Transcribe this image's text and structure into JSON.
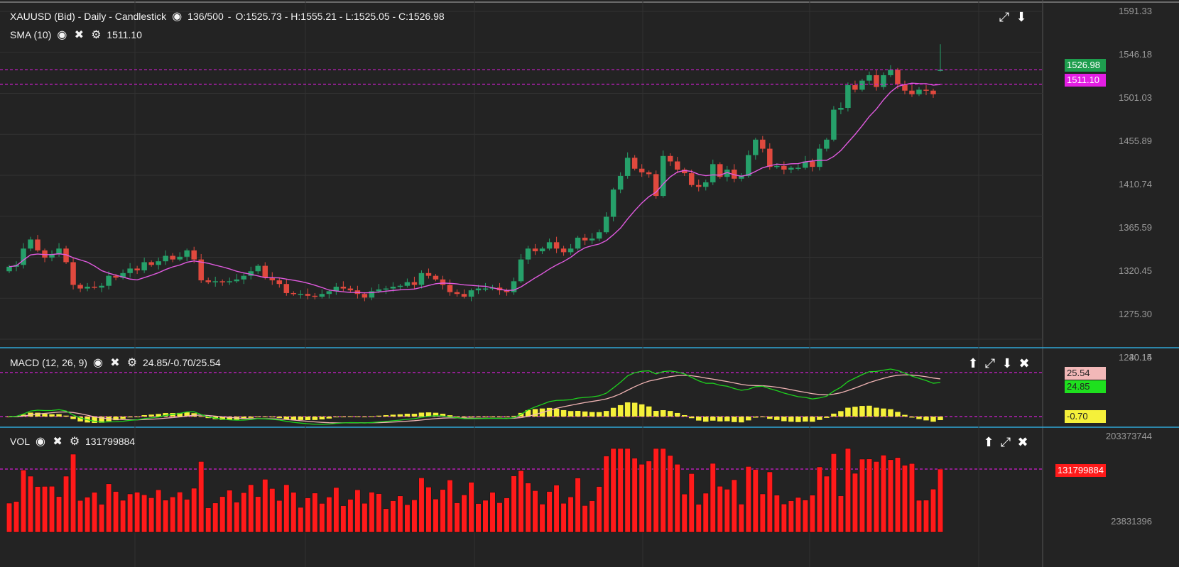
{
  "price_panel": {
    "header": "XAUUSD (Bid) - Daily - Candlestick",
    "counter": "136/500",
    "ohlc": "O:1525.73 - H:1555.21 - L:1525.05 - C:1526.98",
    "sma_label": "SMA (10)",
    "sma_value": "1511.10",
    "price_tag": "1526.98",
    "sma_tag": "1511.10",
    "axis_ticks": [
      "1591.33",
      "1546.18",
      "1501.03",
      "1455.89",
      "1410.74",
      "1365.59",
      "1320.45",
      "1275.30",
      "1230.15"
    ]
  },
  "macd_panel": {
    "label": "MACD (12, 26, 9)",
    "values": "24.85/-0.70/25.54",
    "axis_top": "40.14",
    "signal_tag": "25.54",
    "macd_tag": "24.85",
    "hist_tag": "-0.70"
  },
  "vol_panel": {
    "label": "VOL",
    "value": "131799884",
    "axis_top": "203373744",
    "axis_bottom": "23831396",
    "vol_tag": "131799884"
  },
  "colors": {
    "up": "#26a06a",
    "down": "#e0493e",
    "sma": "#e05adf",
    "macd": "#1ed21e",
    "signal": "#f0b4b4",
    "hist": "#f5f03a",
    "volume": "#ff1a1a",
    "guide": "#d21ed2",
    "separator": "#2fa8d8"
  },
  "chart_data": [
    {
      "type": "candlestick",
      "title": "XAUUSD (Bid) - Daily - Candlestick",
      "ylim": [
        1230.15,
        1591.33
      ],
      "closes": [
        1310,
        1312,
        1330,
        1340,
        1328,
        1320,
        1324,
        1330,
        1315,
        1290,
        1286,
        1288,
        1287,
        1289,
        1300,
        1298,
        1303,
        1308,
        1306,
        1315,
        1312,
        1316,
        1322,
        1318,
        1321,
        1328,
        1318,
        1295,
        1293,
        1294,
        1293,
        1294,
        1296,
        1300,
        1305,
        1311,
        1298,
        1295,
        1291,
        1281,
        1280,
        1280,
        1278,
        1277,
        1280,
        1283,
        1288,
        1286,
        1284,
        1280,
        1276,
        1283,
        1285,
        1286,
        1288,
        1289,
        1293,
        1290,
        1303,
        1300,
        1296,
        1290,
        1282,
        1280,
        1277,
        1284,
        1286,
        1286,
        1287,
        1284,
        1282,
        1294,
        1318,
        1330,
        1327,
        1330,
        1337,
        1330,
        1326,
        1330,
        1342,
        1339,
        1341,
        1348,
        1365,
        1395,
        1410,
        1430,
        1418,
        1414,
        1412,
        1388,
        1432,
        1426,
        1417,
        1413,
        1400,
        1398,
        1403,
        1423,
        1409,
        1417,
        1407,
        1410,
        1433,
        1450,
        1440,
        1420,
        1421,
        1417,
        1419,
        1419,
        1426,
        1420,
        1440,
        1450,
        1483,
        1485,
        1510,
        1505,
        1515,
        1521,
        1508,
        1521,
        1527,
        1511,
        1504,
        1500,
        1505,
        1504,
        1500,
        1526.98
      ],
      "opens": [
        1305,
        1310,
        1312,
        1330,
        1340,
        1328,
        1320,
        1324,
        1330,
        1315,
        1290,
        1286,
        1288,
        1287,
        1289,
        1300,
        1298,
        1303,
        1308,
        1306,
        1315,
        1312,
        1316,
        1322,
        1318,
        1321,
        1328,
        1318,
        1295,
        1293,
        1294,
        1293,
        1294,
        1296,
        1300,
        1305,
        1311,
        1298,
        1295,
        1291,
        1281,
        1280,
        1280,
        1278,
        1277,
        1280,
        1283,
        1288,
        1286,
        1284,
        1280,
        1276,
        1283,
        1285,
        1286,
        1288,
        1289,
        1293,
        1290,
        1303,
        1300,
        1296,
        1290,
        1282,
        1280,
        1277,
        1284,
        1286,
        1286,
        1287,
        1284,
        1282,
        1294,
        1318,
        1330,
        1327,
        1330,
        1337,
        1330,
        1326,
        1330,
        1342,
        1339,
        1341,
        1348,
        1365,
        1395,
        1410,
        1430,
        1418,
        1414,
        1412,
        1388,
        1432,
        1426,
        1417,
        1413,
        1400,
        1398,
        1403,
        1423,
        1409,
        1417,
        1407,
        1410,
        1433,
        1450,
        1440,
        1420,
        1421,
        1417,
        1419,
        1419,
        1426,
        1420,
        1440,
        1450,
        1483,
        1485,
        1510,
        1505,
        1515,
        1521,
        1508,
        1521,
        1527,
        1511,
        1504,
        1500,
        1505,
        1504,
        1525.73
      ],
      "last": {
        "open": 1525.73,
        "high": 1555.21,
        "low": 1525.05,
        "close": 1526.98
      },
      "sma_period": 10
    },
    {
      "type": "line",
      "title": "MACD (12, 26, 9)",
      "ylim": [
        -5,
        40.14
      ],
      "last": {
        "macd": 24.85,
        "histogram": -0.7,
        "signal": 25.54
      }
    },
    {
      "type": "bar",
      "title": "VOL",
      "ylim": [
        23831396,
        203373744
      ],
      "last": 131799884
    }
  ]
}
